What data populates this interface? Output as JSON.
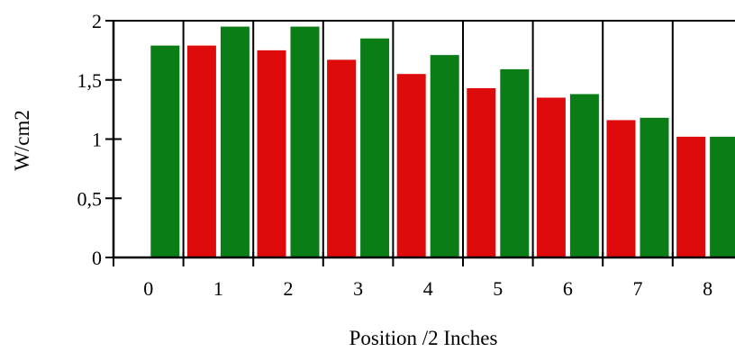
{
  "chart_data": {
    "type": "bar",
    "categories": [
      "0",
      "1",
      "2",
      "3",
      "4",
      "5",
      "6",
      "7",
      "8"
    ],
    "series": [
      {
        "color": "#dd0b0b",
        "values": [
          null,
          1.79,
          1.75,
          1.67,
          1.55,
          1.43,
          1.35,
          1.16,
          1.02
        ]
      },
      {
        "color": "#0a7d17",
        "values": [
          1.79,
          1.95,
          1.95,
          1.85,
          1.71,
          1.59,
          1.38,
          1.18,
          1.02
        ]
      }
    ],
    "ylim": [
      0,
      2
    ],
    "yticks": [
      0,
      0.5,
      1,
      1.5,
      2
    ],
    "ytick_labels": [
      "0",
      "0,5",
      "1",
      "1,5",
      "2"
    ],
    "xlabel": "Position /2 Inches",
    "ylabel": "W/cm2",
    "grid": "vertical gridlines between categories"
  }
}
